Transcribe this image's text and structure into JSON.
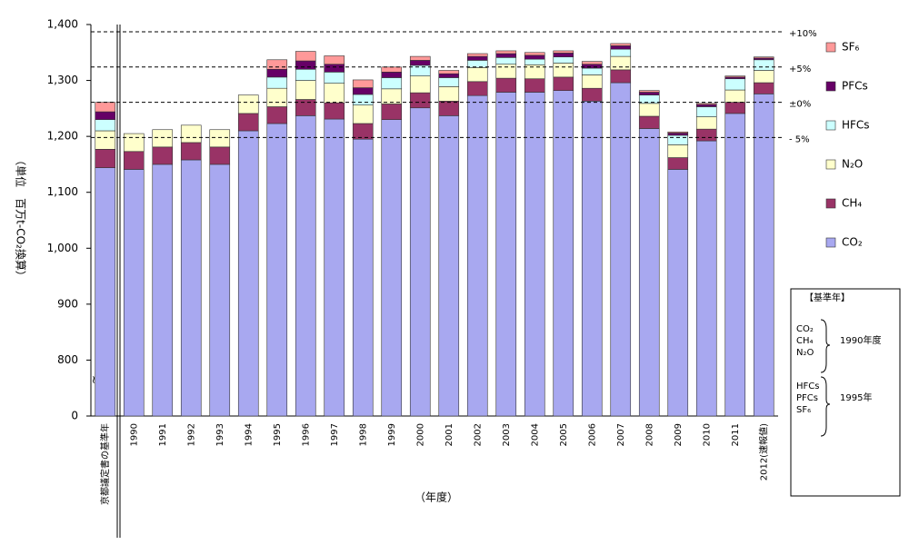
{
  "chart_data": {
    "type": "stacked_bar",
    "y_label": "（単位　百万t-CO₂換算）",
    "x_label": "（年度）",
    "categories": [
      "京都議定書の基準年",
      "1990",
      "1991",
      "1992",
      "1993",
      "1994",
      "1995",
      "1996",
      "1997",
      "1998",
      "1999",
      "2000",
      "2001",
      "2002",
      "2003",
      "2004",
      "2005",
      "2006",
      "2007",
      "2008",
      "2009",
      "2010",
      "2011",
      "2012(速報値)"
    ],
    "series": [
      {
        "name": "CO₂",
        "color": "#a8a8f0",
        "values": [
          1144,
          1141,
          1150,
          1158,
          1150,
          1210,
          1223,
          1237,
          1231,
          1195,
          1230,
          1251,
          1237,
          1273,
          1279,
          1279,
          1282,
          1263,
          1296,
          1214,
          1141,
          1192,
          1241,
          1276
        ]
      },
      {
        "name": "CH₄",
        "color": "#993366",
        "values": [
          33,
          32,
          31,
          31,
          31,
          31,
          30,
          29,
          29,
          28,
          28,
          27,
          26,
          25,
          25,
          24,
          24,
          23,
          23,
          22,
          21,
          21,
          20,
          20
        ]
      },
      {
        "name": "N₂O",
        "color": "#ffffcc",
        "values": [
          33,
          32,
          31,
          31,
          31,
          33,
          33,
          34,
          35,
          33,
          27,
          30,
          26,
          25,
          25,
          25,
          25,
          24,
          24,
          23,
          23,
          22,
          22,
          22
        ]
      },
      {
        "name": "HFCs",
        "color": "#ccffff",
        "values": [
          20,
          null,
          null,
          null,
          null,
          null,
          20,
          20,
          20,
          19,
          20,
          19,
          16,
          13,
          12,
          10,
          11,
          12,
          13,
          15,
          17,
          18,
          20,
          19
        ]
      },
      {
        "name": "PFCs",
        "color": "#660066",
        "values": [
          14,
          null,
          null,
          null,
          null,
          null,
          14,
          15,
          14,
          12,
          10,
          9,
          7,
          7,
          7,
          7,
          7,
          7,
          6,
          5,
          4,
          4,
          3,
          3
        ]
      },
      {
        "name": "SF₆",
        "color": "#ff9999",
        "values": [
          17,
          null,
          null,
          null,
          null,
          null,
          17,
          17,
          15,
          14,
          9,
          7,
          6,
          5,
          5,
          5,
          4,
          5,
          4,
          3,
          2,
          2,
          2,
          2
        ]
      }
    ],
    "ylim": [
      0,
      1400
    ],
    "yticks": [
      0,
      800,
      900,
      {
        "value": 1000,
        "label": "1,000"
      },
      {
        "value": 1100,
        "label": "1,100"
      },
      {
        "value": 1200,
        "label": "1,200"
      },
      {
        "value": 1300,
        "label": "1,300"
      },
      {
        "value": 1400,
        "label": "1,400"
      }
    ],
    "axis_break": "≈",
    "reference_lines": [
      {
        "value": 1387,
        "label": "+10%"
      },
      {
        "value": 1324,
        "label": "+5%"
      },
      {
        "value": 1261,
        "label": "±0%"
      },
      {
        "value": 1198,
        "label": "- 5%"
      }
    ]
  },
  "base_year_box": {
    "title": "【基準年】",
    "groups": [
      {
        "gases": [
          "CO₂",
          "CH₄",
          "N₂O"
        ],
        "year": "1990年度"
      },
      {
        "gases": [
          "HFCs",
          "PFCs",
          "SF₆"
        ],
        "year": "1995年"
      }
    ]
  }
}
